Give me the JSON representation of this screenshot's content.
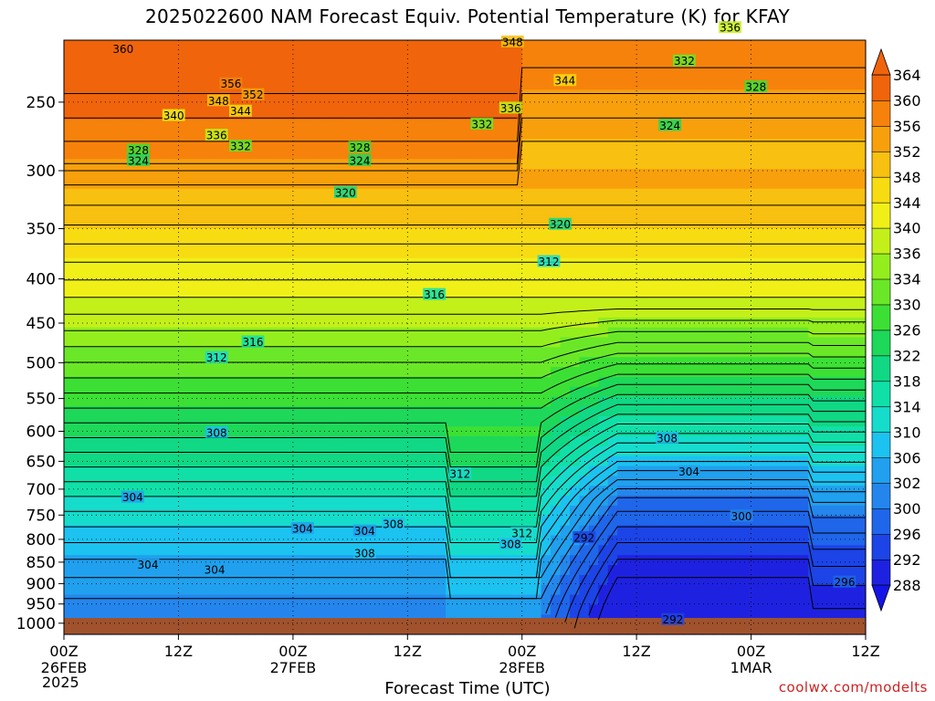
{
  "chart_data": {
    "type": "heatmap",
    "title": "2025022600 NAM Forecast Equiv. Potential Temperature (K) for KFAY",
    "xlabel": "Forecast Time (UTC)",
    "ylabel": "",
    "credit": "coolwx.com/modelts",
    "x_ticks": [
      {
        "hour": 0,
        "label": "00Z",
        "sub": "26FEB"
      },
      {
        "hour": 12,
        "label": "12Z",
        "sub": ""
      },
      {
        "hour": 24,
        "label": "00Z",
        "sub": "27FEB"
      },
      {
        "hour": 36,
        "label": "12Z",
        "sub": ""
      },
      {
        "hour": 48,
        "label": "00Z",
        "sub": "28FEB"
      },
      {
        "hour": 60,
        "label": "12Z",
        "sub": ""
      },
      {
        "hour": 72,
        "label": "00Z",
        "sub": "1MAR"
      },
      {
        "hour": 84,
        "label": "12Z",
        "sub": ""
      }
    ],
    "x_year": "2025",
    "xlim": [
      0,
      84
    ],
    "y_ticks": [
      250,
      300,
      350,
      400,
      450,
      500,
      550,
      600,
      650,
      700,
      750,
      800,
      850,
      900,
      950,
      1000
    ],
    "ylim": [
      1030,
      200
    ],
    "colorbar": {
      "levels": [
        288,
        292,
        296,
        300,
        302,
        306,
        310,
        314,
        318,
        322,
        326,
        330,
        334,
        336,
        340,
        344,
        348,
        352,
        356,
        360,
        364
      ],
      "colors": [
        "#1e22e0",
        "#1c44e6",
        "#1f66ea",
        "#2486ec",
        "#20a0ee",
        "#1cc2f0",
        "#16dccc",
        "#10e0a8",
        "#10d884",
        "#1ed85a",
        "#3ce034",
        "#6ae828",
        "#94ee1e",
        "#c4f01a",
        "#f0f018",
        "#f8dc12",
        "#f8c010",
        "#f8a00c",
        "#f6820c",
        "#f0640c"
      ],
      "extend": "both"
    },
    "contour_labels": [
      {
        "hour": 6.2,
        "p": 217,
        "value": "360"
      },
      {
        "hour": 17.5,
        "p": 238,
        "value": "356"
      },
      {
        "hour": 19.8,
        "p": 245,
        "value": "352"
      },
      {
        "hour": 16.2,
        "p": 249,
        "value": "348"
      },
      {
        "hour": 18.5,
        "p": 256,
        "value": "344"
      },
      {
        "hour": 11.5,
        "p": 259,
        "value": "340"
      },
      {
        "hour": 16.0,
        "p": 273,
        "value": "336"
      },
      {
        "hour": 18.5,
        "p": 281,
        "value": "332"
      },
      {
        "hour": 7.8,
        "p": 284,
        "value": "328"
      },
      {
        "hour": 7.8,
        "p": 292,
        "value": "324"
      },
      {
        "hour": 31.0,
        "p": 282,
        "value": "328"
      },
      {
        "hour": 31.0,
        "p": 292,
        "value": "324"
      },
      {
        "hour": 29.5,
        "p": 318,
        "value": "320"
      },
      {
        "hour": 47.0,
        "p": 213,
        "value": "348"
      },
      {
        "hour": 52.5,
        "p": 236,
        "value": "344"
      },
      {
        "hour": 46.8,
        "p": 254,
        "value": "336"
      },
      {
        "hour": 43.8,
        "p": 265,
        "value": "332"
      },
      {
        "hour": 65.0,
        "p": 224,
        "value": "332"
      },
      {
        "hour": 69.8,
        "p": 205,
        "value": "336"
      },
      {
        "hour": 72.5,
        "p": 240,
        "value": "328"
      },
      {
        "hour": 63.5,
        "p": 266,
        "value": "324"
      },
      {
        "hour": 52.0,
        "p": 346,
        "value": "320"
      },
      {
        "hour": 50.8,
        "p": 382,
        "value": "312"
      },
      {
        "hour": 38.8,
        "p": 417,
        "value": "316"
      },
      {
        "hour": 19.8,
        "p": 473,
        "value": "316"
      },
      {
        "hour": 16.0,
        "p": 493,
        "value": "312"
      },
      {
        "hour": 16.0,
        "p": 602,
        "value": "308"
      },
      {
        "hour": 41.5,
        "p": 672,
        "value": "312"
      },
      {
        "hour": 63.2,
        "p": 611,
        "value": "308"
      },
      {
        "hour": 65.5,
        "p": 668,
        "value": "304"
      },
      {
        "hour": 71.0,
        "p": 752,
        "value": "300"
      },
      {
        "hour": 7.2,
        "p": 715,
        "value": "304"
      },
      {
        "hour": 25.0,
        "p": 777,
        "value": "304"
      },
      {
        "hour": 31.5,
        "p": 782,
        "value": "304"
      },
      {
        "hour": 34.5,
        "p": 768,
        "value": "308"
      },
      {
        "hour": 31.5,
        "p": 830,
        "value": "308"
      },
      {
        "hour": 48.0,
        "p": 787,
        "value": "312"
      },
      {
        "hour": 46.8,
        "p": 810,
        "value": "308"
      },
      {
        "hour": 54.5,
        "p": 796,
        "value": "292"
      },
      {
        "hour": 8.8,
        "p": 855,
        "value": "304"
      },
      {
        "hour": 15.8,
        "p": 867,
        "value": "304"
      },
      {
        "hour": 63.8,
        "p": 990,
        "value": "292"
      },
      {
        "hour": 81.8,
        "p": 896,
        "value": "296"
      }
    ]
  }
}
